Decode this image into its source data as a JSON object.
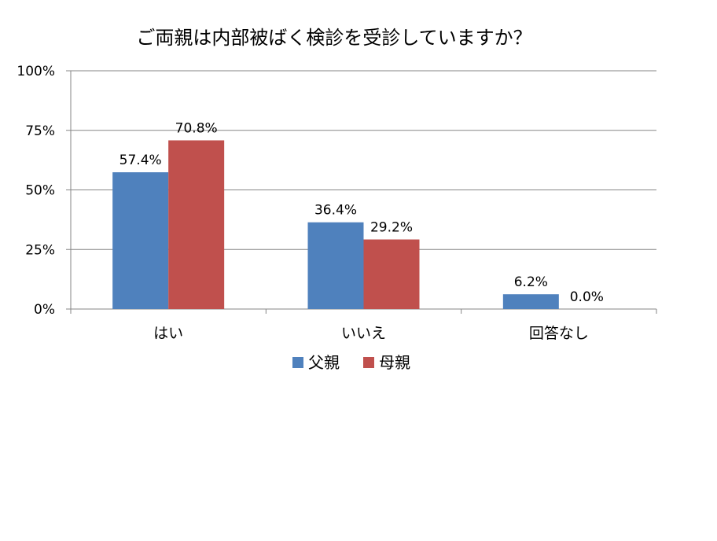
{
  "chart_data": {
    "type": "bar",
    "title": "ご両親は内部被ばく検診を受診していますか？",
    "xlabel": "",
    "ylabel": "",
    "categories": [
      "はい",
      "いいえ",
      "回答なし"
    ],
    "series": [
      {
        "name": "父親",
        "color": "#4F81BD",
        "values": [
          57.4,
          36.4,
          6.2
        ],
        "labels": [
          "57.4%",
          "36.4%",
          "6.2%"
        ]
      },
      {
        "name": "母親",
        "color": "#C0504D",
        "values": [
          70.8,
          29.2,
          0.0
        ],
        "labels": [
          "70.8%",
          "29.2%",
          "0.0%"
        ]
      }
    ],
    "ylim": [
      0,
      100
    ],
    "yticks": [
      0,
      25,
      50,
      75,
      100
    ],
    "ytick_labels": [
      "0%",
      "25%",
      "50%",
      "75%",
      "100%"
    ],
    "grid": true,
    "legend_position": "bottom"
  }
}
